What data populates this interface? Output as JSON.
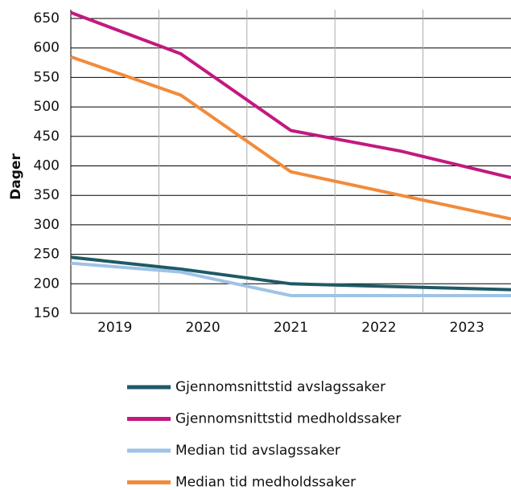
{
  "chart_data": {
    "type": "line",
    "y_label": "Dager",
    "categories": [
      "2019",
      "2020",
      "2021",
      "2022",
      "2023"
    ],
    "series": [
      {
        "name": "Gjennomsnittstid avslagssaker",
        "color": "#1f5a66",
        "values": [
          245,
          225,
          200,
          195,
          190
        ]
      },
      {
        "name": "Gjennomsnittstid medholdssaker",
        "color": "#c2197f",
        "values": [
          660,
          590,
          460,
          425,
          380
        ]
      },
      {
        "name": "Median tid avslagssaker",
        "color": "#9ec3e6",
        "values": [
          235,
          220,
          180,
          180,
          180
        ]
      },
      {
        "name": "Median tid medholdssaker",
        "color": "#f28b3b",
        "values": [
          585,
          520,
          390,
          350,
          310
        ]
      }
    ],
    "ylim": [
      150,
      665
    ],
    "yticks": [
      150,
      200,
      250,
      300,
      350,
      400,
      450,
      500,
      550,
      600,
      650
    ],
    "grid": true
  }
}
